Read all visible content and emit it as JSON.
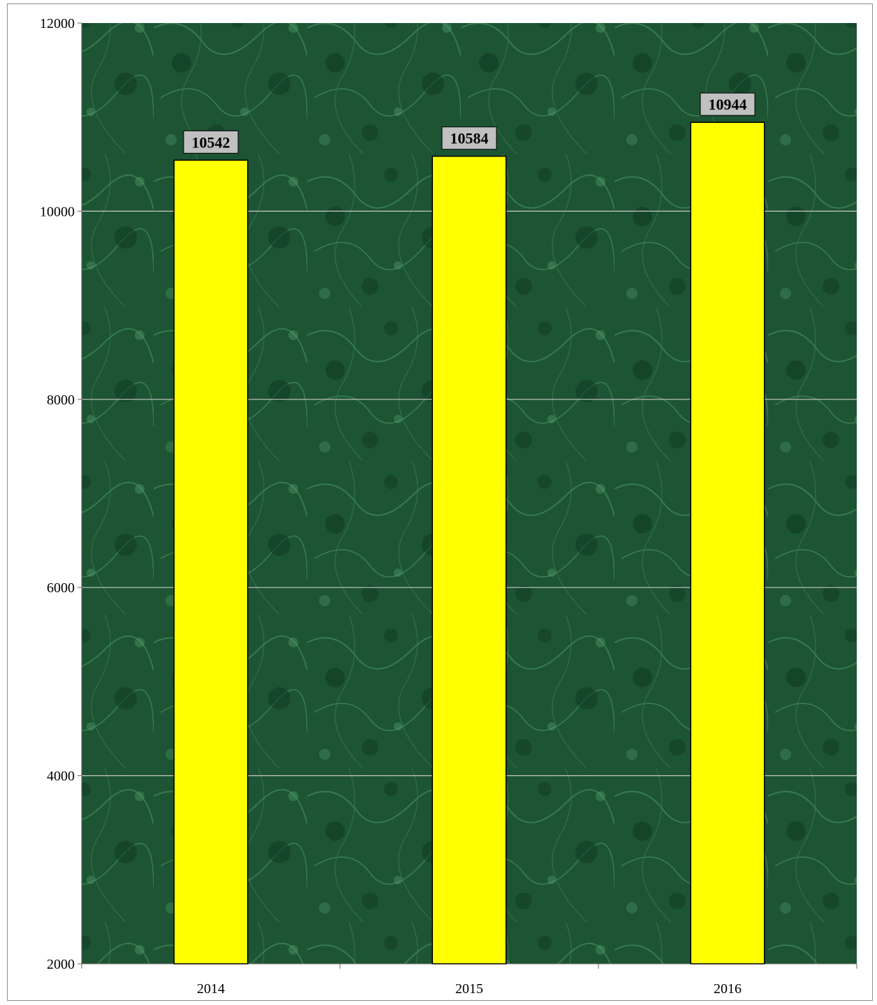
{
  "chart_data": {
    "type": "bar",
    "categories": [
      "2014",
      "2015",
      "2016"
    ],
    "values": [
      10542,
      10584,
      10944
    ],
    "data_labels": [
      "10542",
      "10584",
      "10944"
    ],
    "title": "",
    "xlabel": "",
    "ylabel": "",
    "ylim": [
      2000,
      12000
    ],
    "yticks": [
      2000,
      4000,
      6000,
      8000,
      10000,
      12000
    ],
    "ytick_labels": [
      "2000",
      "4000",
      "6000",
      "8000",
      "10000",
      "12000"
    ],
    "grid": true,
    "legend": "none",
    "colors": {
      "bar_fill": "#ffff00",
      "bar_stroke": "#000000",
      "plot_background": "#1f5a36",
      "gridline": "#c8c8c8",
      "data_label_box": "#c0c0c0"
    }
  }
}
